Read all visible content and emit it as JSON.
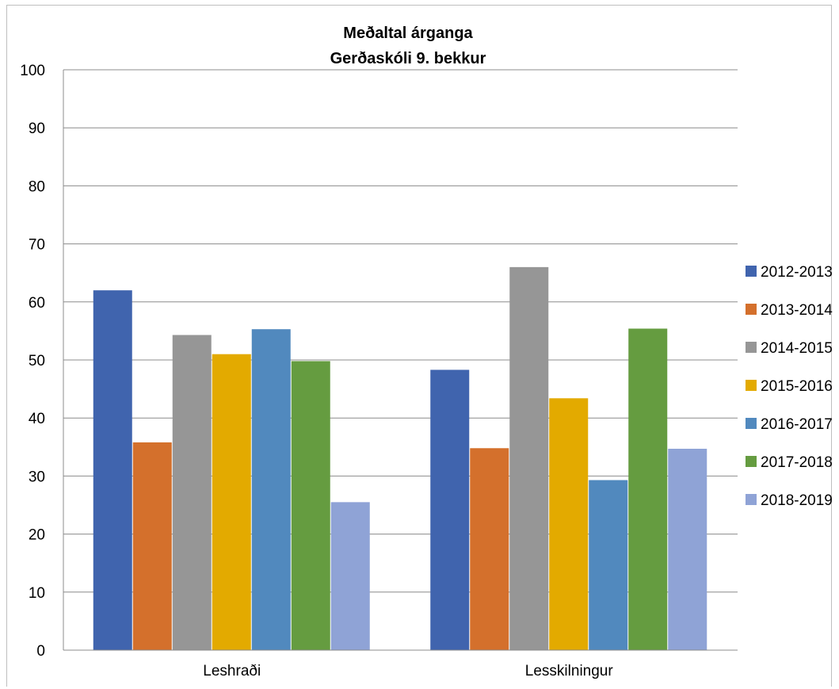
{
  "chart_data": {
    "type": "bar",
    "title": "Meðaltal árganga",
    "subtitle": "Gerðaskóli 9. bekkur",
    "xlabel": "",
    "ylabel": "",
    "ylim": [
      0,
      100
    ],
    "yticks": [
      0,
      10,
      20,
      30,
      40,
      50,
      60,
      70,
      80,
      90,
      100
    ],
    "grid": true,
    "legend_position": "right",
    "categories": [
      "Leshraði",
      "Lesskilningur"
    ],
    "series": [
      {
        "name": "2012-2013",
        "color": "#4064AE",
        "values": [
          62,
          48.3
        ]
      },
      {
        "name": "2013-2014",
        "color": "#D4702C",
        "values": [
          35.8,
          34.8
        ]
      },
      {
        "name": "2014-2015",
        "color": "#969696",
        "values": [
          54.3,
          66
        ]
      },
      {
        "name": "2015-2016",
        "color": "#E3AA00",
        "values": [
          51,
          43.4
        ]
      },
      {
        "name": "2016-2017",
        "color": "#5189BE",
        "values": [
          55.3,
          29.3
        ]
      },
      {
        "name": "2017-2018",
        "color": "#659C40",
        "values": [
          49.8,
          55.4
        ]
      },
      {
        "name": "2018-2019",
        "color": "#8FA3D6",
        "values": [
          25.5,
          34.7
        ]
      }
    ]
  }
}
